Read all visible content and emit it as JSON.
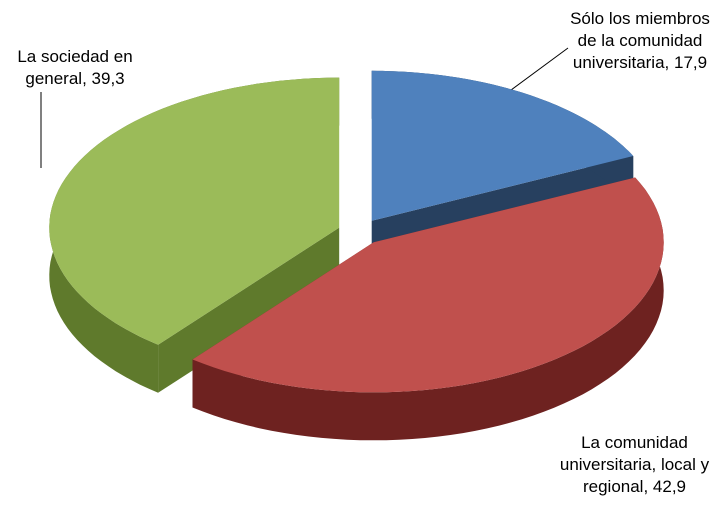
{
  "chart_data": {
    "type": "pie3d",
    "categories": [
      "Sólo los miembros de la comunidad universitaria",
      "La comunidad universitaria, local y regional",
      "La sociedad en general"
    ],
    "values": [
      17.9,
      42.9,
      39.3
    ],
    "value_labels": [
      "17,9",
      "42,9",
      "39,3"
    ],
    "label_separator": ", ",
    "colors": [
      "#4f81bd",
      "#c0504d",
      "#9bbb59"
    ],
    "side_colors": [
      "#27405f",
      "#6e2220",
      "#5f7a2c"
    ]
  }
}
